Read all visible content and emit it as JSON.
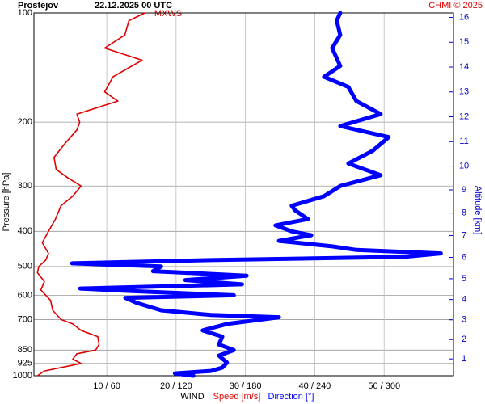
{
  "chart_data": {
    "type": "line",
    "station": "Prostejov",
    "time": "22.12.2025 00 UTC",
    "credit": "CHMI © 2025",
    "annotation": "MXWS",
    "ylabel": "Pressure [hPa]",
    "y2label": "Altitude [km]",
    "xlabel": "WIND",
    "ylog": true,
    "grid": true,
    "ylim": [
      100,
      1000
    ],
    "yticks": [
      100,
      200,
      300,
      400,
      500,
      600,
      700,
      850,
      925,
      1000
    ],
    "y2ticks": [
      1,
      2,
      3,
      4,
      5,
      6,
      7,
      8,
      9,
      10,
      11,
      12,
      13,
      14,
      15,
      16
    ],
    "xlim": [
      -0.5,
      60
    ],
    "xticks": [
      {
        "value": 10,
        "label": "10 / 60"
      },
      {
        "value": 20,
        "label": "20 / 120"
      },
      {
        "value": 30,
        "label": "30 / 180"
      },
      {
        "value": 40,
        "label": "40 / 240"
      },
      {
        "value": 50,
        "label": "50 / 300"
      }
    ],
    "series": [
      {
        "name": "Speed [m/s]",
        "color": "#e00000",
        "xlim": [
          -0.5,
          60
        ],
        "levels": [
          1000,
          970,
          925,
          900,
          870,
          850,
          820,
          780,
          750,
          720,
          700,
          660,
          620,
          580,
          550,
          520,
          500,
          480,
          460,
          430,
          400,
          370,
          340,
          320,
          300,
          285,
          270,
          250,
          230,
          210,
          200,
          190,
          175,
          165,
          150,
          135,
          125,
          115,
          105,
          100
        ],
        "values": [
          0,
          1.0,
          6.3,
          5.1,
          5.7,
          8.4,
          8.9,
          8.7,
          6.3,
          5.1,
          3.4,
          2.2,
          1.9,
          0.5,
          1.0,
          0,
          0.2,
          1.2,
          1.6,
          0.7,
          1.6,
          2.6,
          3.4,
          5.1,
          6.3,
          4.4,
          2.7,
          2.4,
          3.9,
          5.7,
          6.1,
          5.7,
          11.6,
          9.7,
          10.9,
          15.1,
          9.7,
          12.6,
          13.2,
          15.5
        ]
      },
      {
        "name": "Direction [°]",
        "color": "#0000ff",
        "xlim": [
          -3,
          360
        ],
        "levels": [
          1000,
          985,
          970,
          950,
          920,
          880,
          850,
          820,
          780,
          750,
          720,
          690,
          680,
          660,
          630,
          610,
          600,
          585,
          575,
          560,
          545,
          530,
          515,
          500,
          490,
          480,
          470,
          460,
          450,
          440,
          425,
          410,
          400,
          385,
          370,
          350,
          340,
          320,
          300,
          280,
          260,
          240,
          220,
          205,
          190,
          175,
          160,
          150,
          140,
          125,
          115,
          105,
          100
        ],
        "values": [
          135,
          119,
          150,
          160,
          164,
          157,
          170,
          157,
          160,
          143,
          164,
          209,
          150,
          107,
          86,
          76,
          170,
          86,
          37,
          177,
          128,
          181,
          100,
          107,
          30,
          150,
          318,
          349,
          276,
          255,
          209,
          237,
          220,
          206,
          234,
          223,
          220,
          248,
          262,
          297,
          269,
          290,
          304,
          262,
          297,
          276,
          269,
          248,
          262,
          255,
          262,
          259,
          262
        ]
      }
    ]
  }
}
